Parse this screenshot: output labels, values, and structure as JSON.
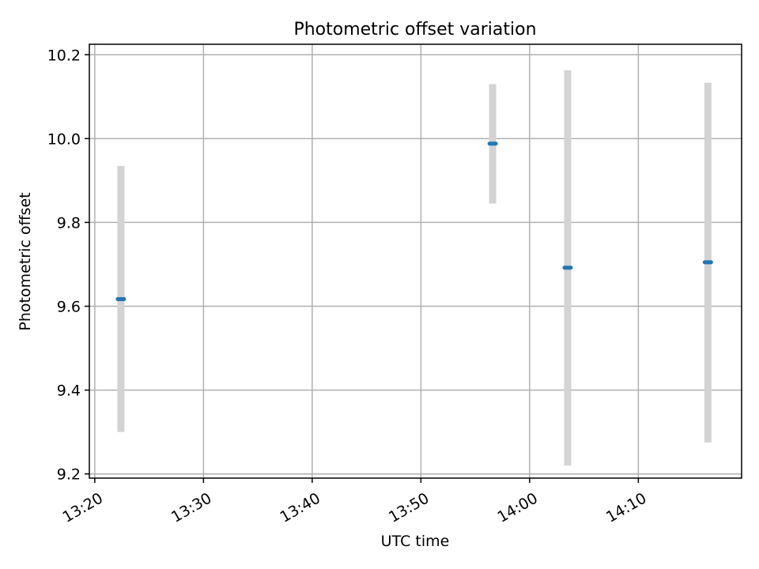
{
  "chart_data": {
    "type": "scatter",
    "title": "Photometric offset variation",
    "xlabel": "UTC time",
    "ylabel": "Photometric offset",
    "grid": true,
    "x_ticks": [
      "13:20",
      "13:30",
      "13:40",
      "13:50",
      "14:00",
      "14:10"
    ],
    "y_ticks": [
      "9.2",
      "9.4",
      "9.6",
      "9.8",
      "10.0",
      "10.2"
    ],
    "xlim": [
      "13:19.5",
      "14:19.5"
    ],
    "ylim": [
      9.19,
      10.225
    ],
    "series": [
      {
        "x": [
          "13:22.4",
          "13:56.6",
          "14:03.5",
          "14:16.4"
        ],
        "y": [
          9.617,
          9.988,
          9.692,
          9.705
        ],
        "error_low": [
          9.3,
          9.845,
          9.22,
          9.275
        ],
        "error_high": [
          9.935,
          10.13,
          10.163,
          10.133
        ]
      }
    ],
    "colors": {
      "point": "#1f77b4",
      "errorbar": "#d3d3d3",
      "grid": "#b0b0b0"
    }
  }
}
